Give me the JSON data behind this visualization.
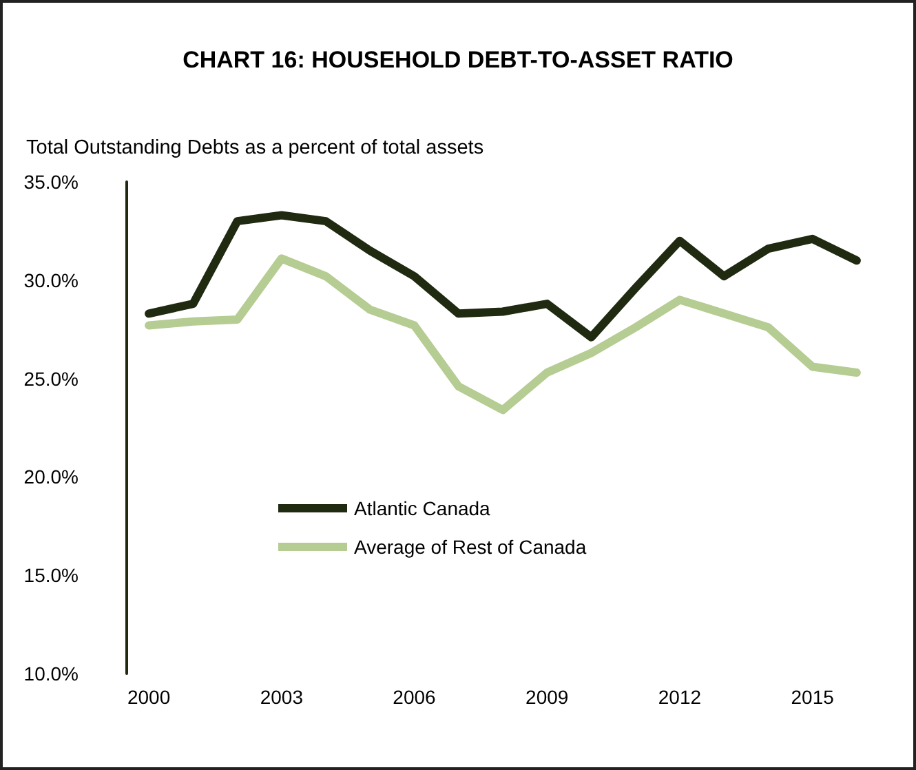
{
  "chart_data": {
    "type": "line",
    "title": "CHART 16: HOUSEHOLD DEBT-TO-ASSET RATIO",
    "ylabel": "Total Outstanding Debts as a percent of total assets",
    "categories": [
      "2000",
      null,
      null,
      "2003",
      null,
      null,
      "2006",
      null,
      null,
      "2009",
      null,
      null,
      "2012",
      null,
      null,
      "2015",
      null
    ],
    "series": [
      {
        "name": "Atlantic Canada",
        "color": "#1f2a10",
        "values": [
          28.3,
          28.8,
          33.0,
          33.3,
          33.0,
          31.5,
          30.2,
          28.3,
          28.4,
          28.8,
          27.1,
          29.6,
          32.0,
          30.2,
          31.6,
          32.1,
          31.0
        ]
      },
      {
        "name": "Average of Rest of Canada",
        "color": "#b5cc92",
        "values": [
          27.7,
          27.9,
          28.0,
          31.1,
          30.2,
          28.5,
          27.7,
          24.6,
          23.4,
          25.3,
          26.3,
          27.6,
          29.0,
          28.3,
          27.6,
          25.6,
          25.3
        ]
      }
    ],
    "ylim": [
      10,
      35
    ],
    "yticks": [
      {
        "value": 10,
        "label": "10.0%"
      },
      {
        "value": 15,
        "label": "15.0%"
      },
      {
        "value": 20,
        "label": "20.0%"
      },
      {
        "value": 25,
        "label": "25.0%"
      },
      {
        "value": 30,
        "label": "30.0%"
      },
      {
        "value": 35,
        "label": "35.0%"
      }
    ],
    "grid": false,
    "legend": "bottom left",
    "marker": "none",
    "line_style": "solid"
  }
}
